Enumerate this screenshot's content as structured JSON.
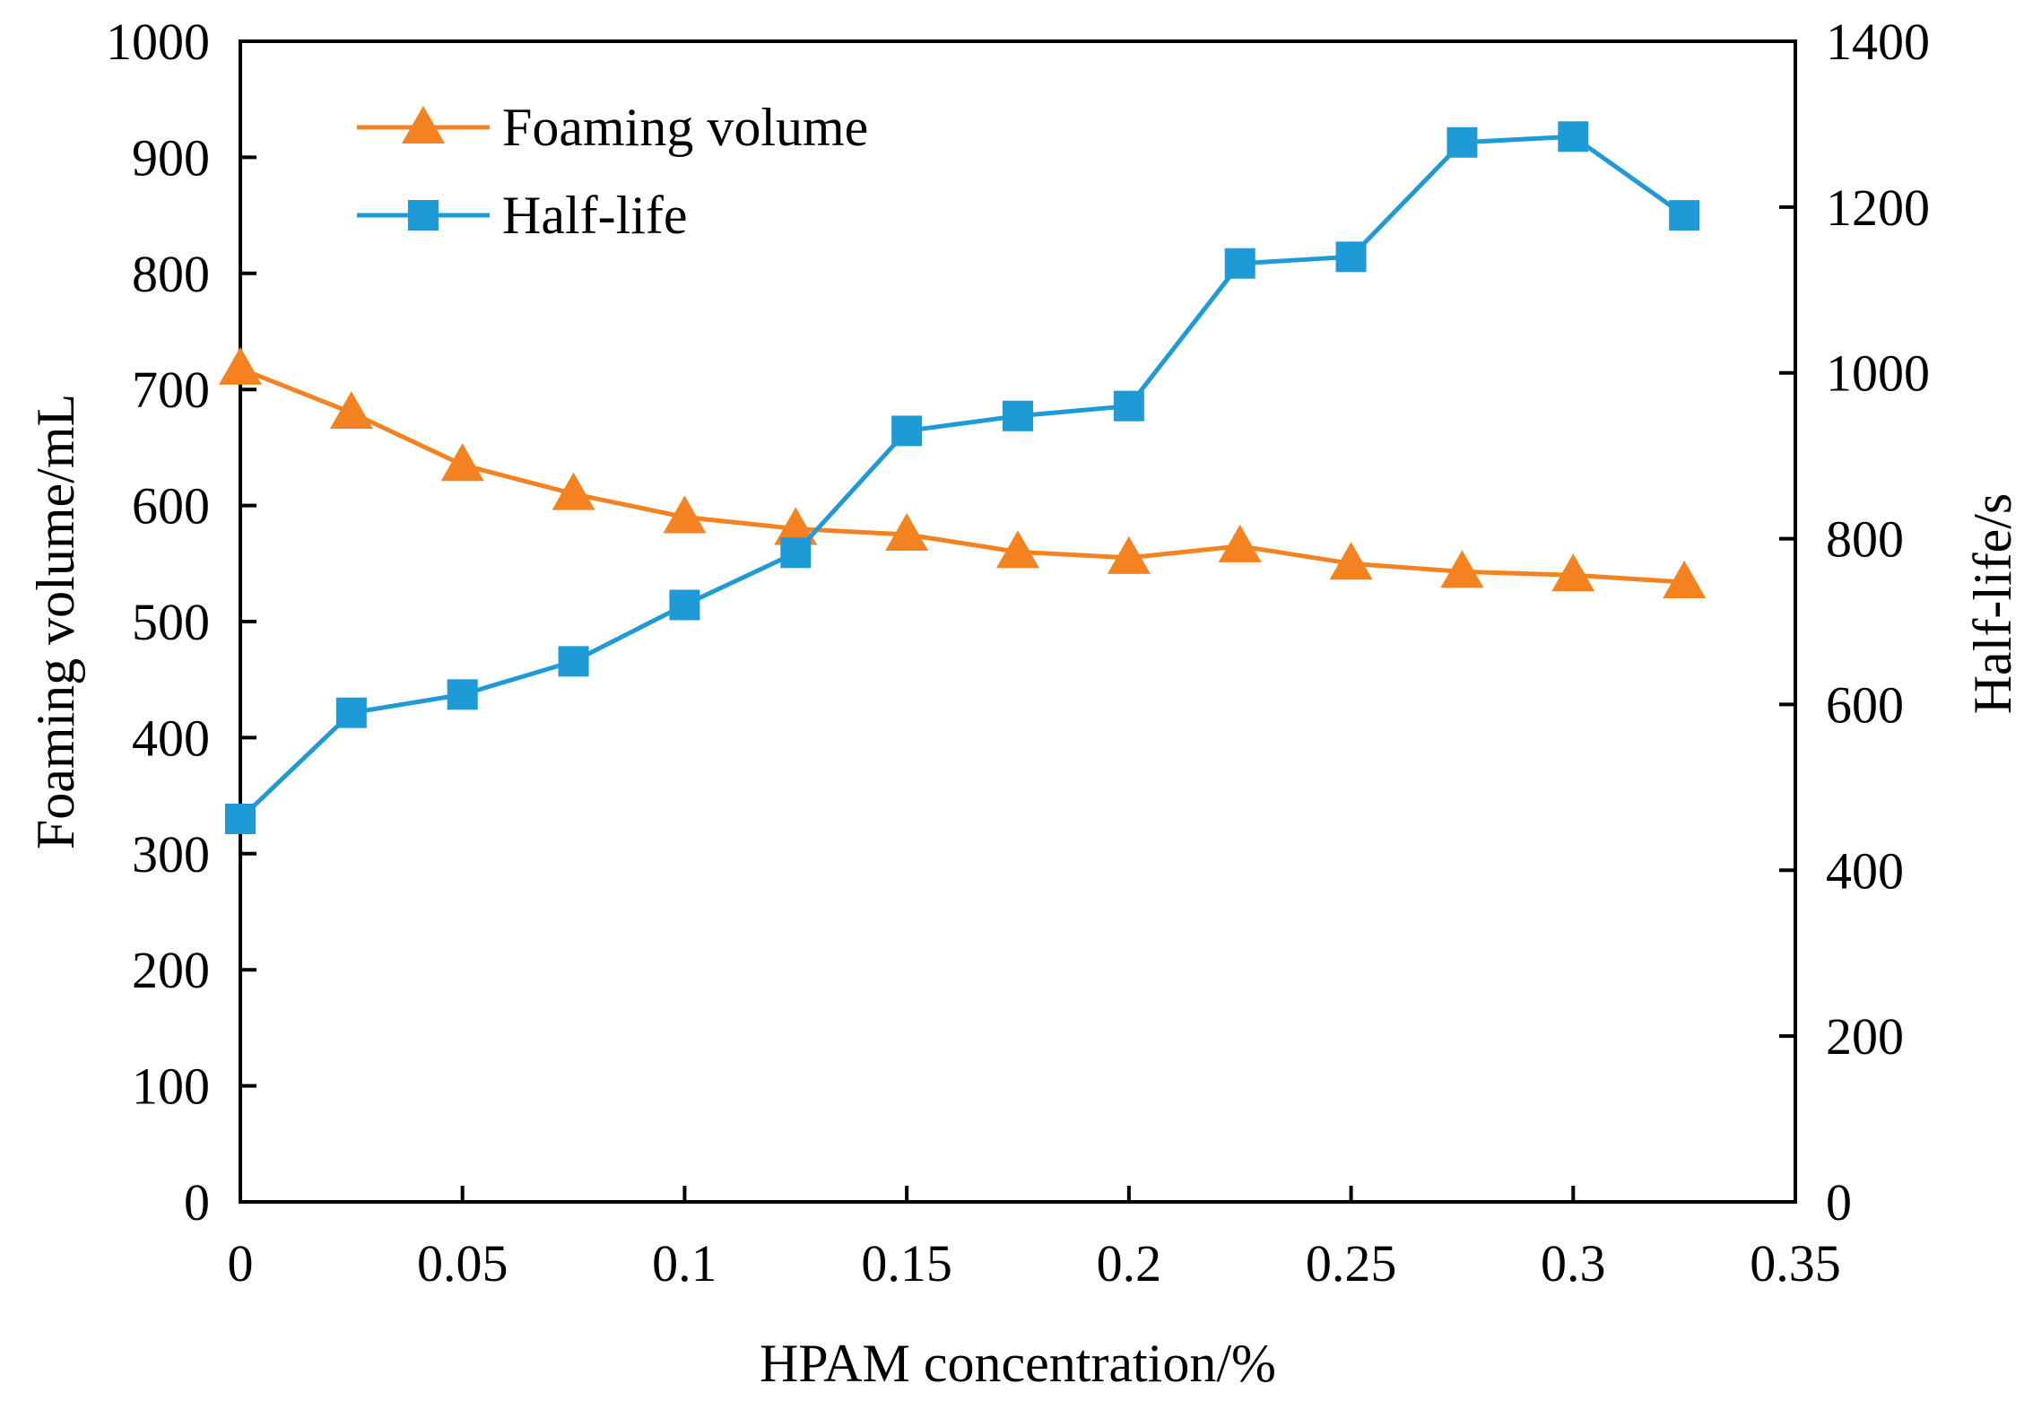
{
  "chart_data": {
    "type": "line",
    "title": "",
    "xlabel": "HPAM concentration/%",
    "ylabel": "Foaming volume/mL",
    "y2label": "Half-life/s",
    "xlim": [
      0,
      0.35
    ],
    "ylim": [
      0,
      1000
    ],
    "y2lim": [
      0,
      1400
    ],
    "x_ticks": [
      0,
      0.05,
      0.1,
      0.15,
      0.2,
      0.25,
      0.3,
      0.35
    ],
    "x_tick_labels": [
      "0",
      "0.05",
      "0.1",
      "0.15",
      "0.2",
      "0.25",
      "0.3",
      "0.35"
    ],
    "y_ticks": [
      0,
      100,
      200,
      300,
      400,
      500,
      600,
      700,
      800,
      900,
      1000
    ],
    "y_tick_labels": [
      "0",
      "100",
      "200",
      "300",
      "400",
      "500",
      "600",
      "700",
      "800",
      "900",
      "1000"
    ],
    "y2_ticks": [
      0,
      200,
      400,
      600,
      800,
      1000,
      1200,
      1400
    ],
    "y2_tick_labels": [
      "0",
      "200",
      "400",
      "600",
      "800",
      "1000",
      "1200",
      "1400"
    ],
    "grid": false,
    "legend_position": "top-left",
    "x": [
      0,
      0.025,
      0.05,
      0.075,
      0.1,
      0.125,
      0.15,
      0.175,
      0.2,
      0.225,
      0.25,
      0.275,
      0.3,
      0.325
    ],
    "series": [
      {
        "name": "Foaming volume",
        "axis": "left",
        "marker": "triangle",
        "color": "#F58220",
        "values": [
          718,
          680,
          635,
          610,
          590,
          580,
          575,
          560,
          555,
          565,
          550,
          543,
          540,
          534
        ]
      },
      {
        "name": "Half-life",
        "axis": "right",
        "marker": "square",
        "color": "#1E9AD6",
        "values": [
          462,
          590,
          612,
          652,
          720,
          783,
          930,
          948,
          960,
          1132,
          1140,
          1278,
          1285,
          1190
        ]
      }
    ]
  }
}
